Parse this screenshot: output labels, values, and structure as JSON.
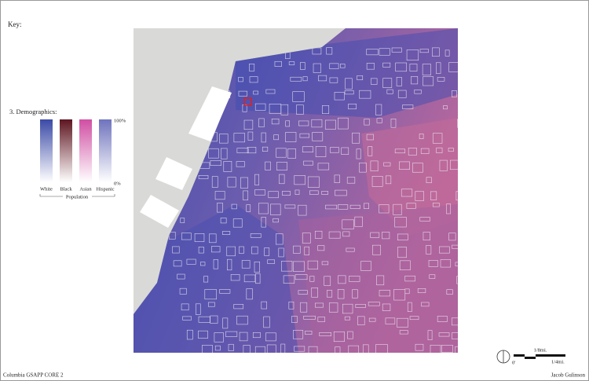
{
  "key": {
    "title": "Key:",
    "section": "3. Demographics:",
    "max_label": "100%",
    "min_label": "0%",
    "categories": [
      "White",
      "Black",
      "Asian",
      "Hispanic"
    ],
    "group_label": "Population"
  },
  "scale": {
    "mid": "1/8mi.",
    "zero": "0'",
    "end": "1/4mi."
  },
  "footer": {
    "left": "Columbia GSAPP CORE 2",
    "right": "Jacob Gulinson"
  }
}
